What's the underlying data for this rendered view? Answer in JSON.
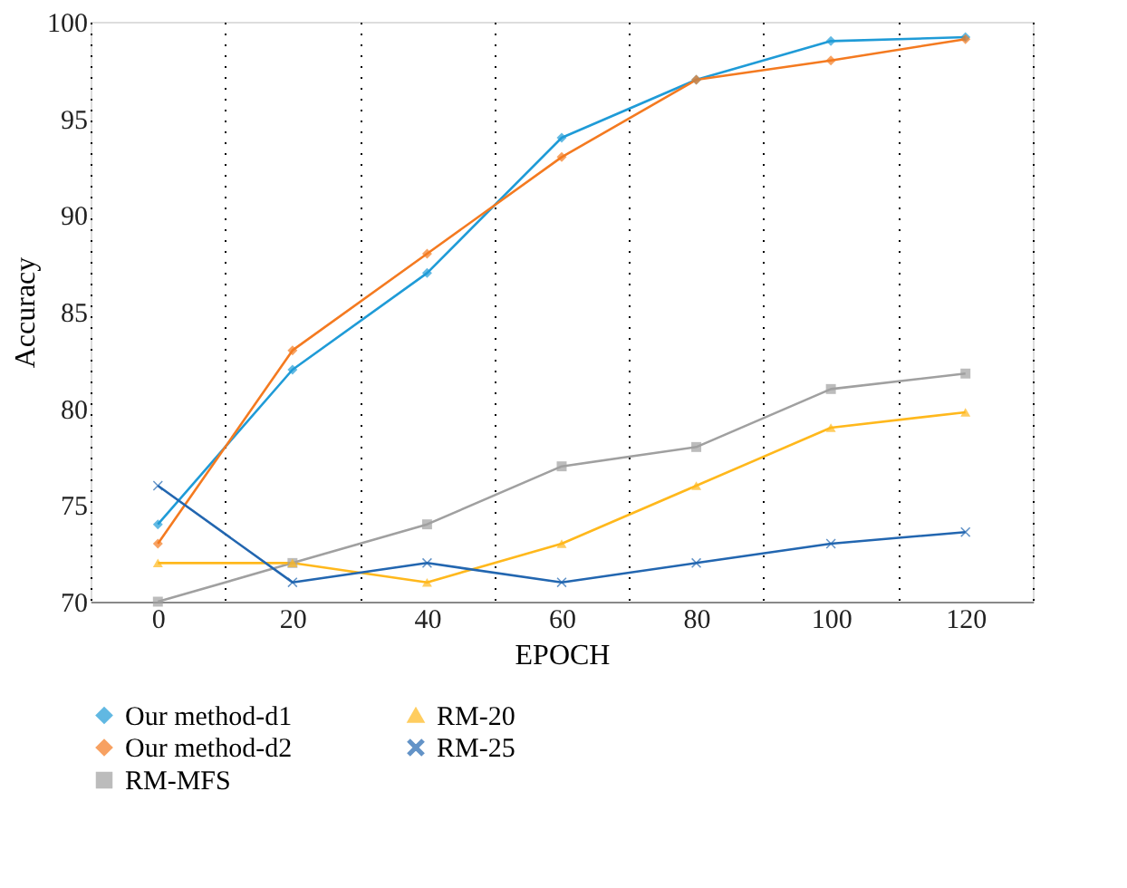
{
  "chart_data": {
    "type": "line",
    "xlabel": "EPOCH",
    "ylabel": "Accuracy",
    "categories": [
      "0",
      "20",
      "40",
      "60",
      "80",
      "100",
      "120"
    ],
    "ylim": [
      70,
      100
    ],
    "yticks": [
      70,
      75,
      80,
      85,
      90,
      95,
      100
    ],
    "grid": "x",
    "legend": "bottom",
    "series": [
      {
        "name": "Our method-d1",
        "color": "#1f9bd7",
        "marker": "diamond",
        "values": [
          74,
          82,
          87,
          94,
          97,
          99,
          99.2
        ]
      },
      {
        "name": "Our method-d2",
        "color": "#f47a20",
        "marker": "diamond",
        "values": [
          73,
          83,
          88,
          93,
          97,
          98,
          99.1
        ]
      },
      {
        "name": "RM-MFS",
        "color": "#a0a0a0",
        "marker": "square",
        "values": [
          70,
          72,
          74,
          77,
          78,
          81,
          81.8
        ]
      },
      {
        "name": "RM-20",
        "color": "#ffb81c",
        "marker": "triangle",
        "values": [
          72,
          72,
          71,
          73,
          76,
          79,
          79.8
        ]
      },
      {
        "name": "RM-25",
        "color": "#2266b0",
        "marker": "cross",
        "values": [
          76,
          71,
          72,
          71,
          72,
          73,
          73.6
        ]
      }
    ]
  }
}
